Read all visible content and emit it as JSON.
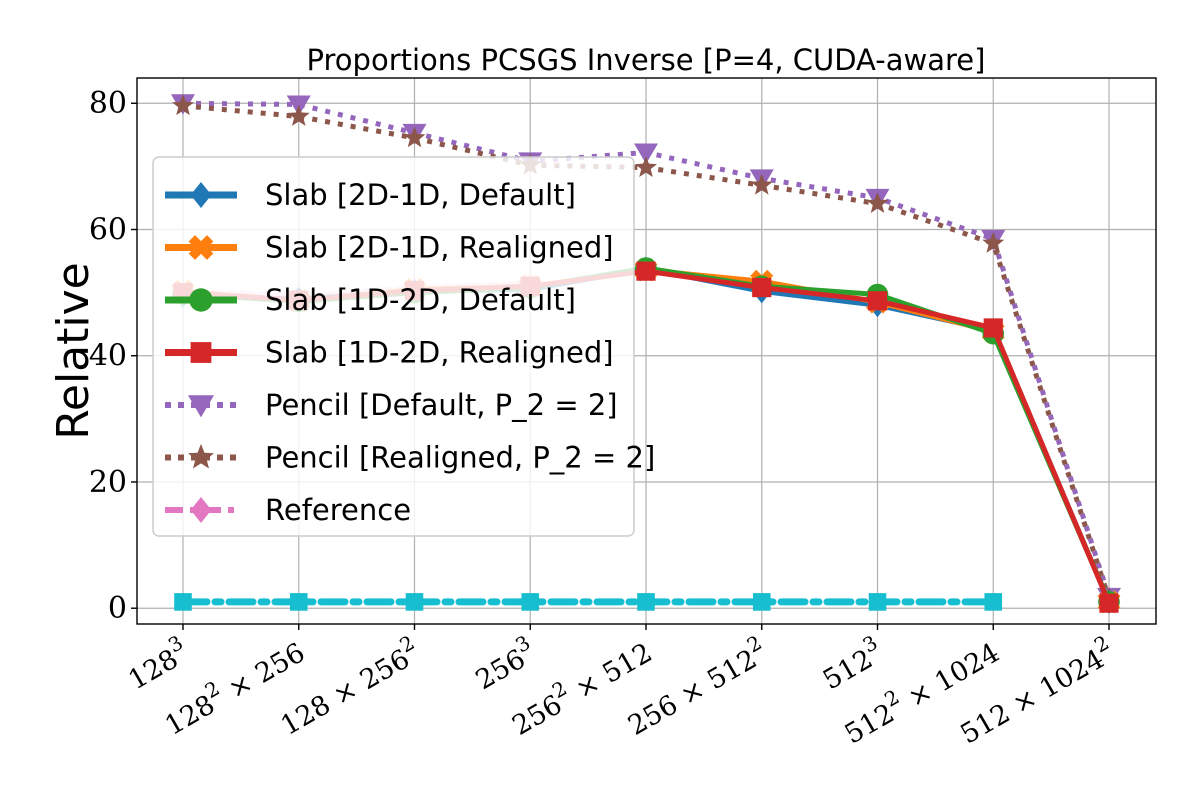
{
  "chart_data": {
    "type": "line",
    "title": "Proportions PCSGS Inverse [P=4, CUDA-aware]",
    "xlabel": "",
    "ylabel": "Relative",
    "categories": [
      "128^3",
      "128^2 × 256",
      "128 × 256^2",
      "256^3",
      "256^2 × 512",
      "256 × 512^2",
      "512^3",
      "512^2 × 1024",
      "512 × 1024^2"
    ],
    "yticks": [
      0,
      20,
      40,
      60,
      80
    ],
    "ylim": [
      -2.5,
      84
    ],
    "grid": true,
    "legend_position": "upper-left",
    "series": [
      {
        "name": "Slab [2D-1D, Default]",
        "color": "#1f77b4",
        "marker": "diamond",
        "linestyle": "solid",
        "values": [
          49.5,
          49.0,
          50.2,
          50.5,
          53.8,
          50.2,
          48.0,
          44.0,
          1.0
        ]
      },
      {
        "name": "Slab [2D-1D, Realigned]",
        "color": "#ff7f0e",
        "marker": "plus-filled",
        "linestyle": "solid",
        "values": [
          50.2,
          48.7,
          50.5,
          51.0,
          53.6,
          51.8,
          48.5,
          43.8,
          1.0
        ]
      },
      {
        "name": "Slab [1D-2D, Default]",
        "color": "#2ca02c",
        "marker": "circle",
        "linestyle": "solid",
        "values": [
          49.8,
          48.6,
          50.0,
          50.8,
          53.9,
          51.0,
          49.7,
          43.5,
          1.0
        ]
      },
      {
        "name": "Slab [1D-2D, Realigned]",
        "color": "#d62728",
        "marker": "square",
        "linestyle": "solid",
        "values": [
          50.0,
          48.8,
          50.3,
          51.0,
          53.4,
          50.8,
          48.7,
          44.4,
          0.8
        ]
      },
      {
        "name": "Pencil [Default, P_2 = 2]",
        "color": "#9467bd",
        "marker": "triangle-down",
        "linestyle": "dotted",
        "values": [
          80.0,
          79.8,
          75.3,
          70.8,
          72.2,
          68.1,
          65.0,
          58.5,
          1.8
        ]
      },
      {
        "name": "Pencil [Realigned, P_2 = 2]",
        "color": "#8c564b",
        "marker": "star",
        "linestyle": "dotted",
        "values": [
          79.6,
          77.9,
          74.5,
          70.2,
          69.8,
          67.0,
          64.1,
          57.8,
          1.5
        ]
      },
      {
        "name": "Reference",
        "color": "#e377c2",
        "marker": "diamond",
        "linestyle": "dashdot",
        "values": [
          50.0,
          49.2,
          50.5,
          51.2,
          null,
          null,
          null,
          null,
          null
        ]
      },
      {
        "color": "#17becf",
        "marker": "square",
        "linestyle": "dashdot",
        "values": [
          1,
          1,
          1,
          1,
          1,
          1,
          1,
          1,
          null
        ]
      }
    ]
  }
}
